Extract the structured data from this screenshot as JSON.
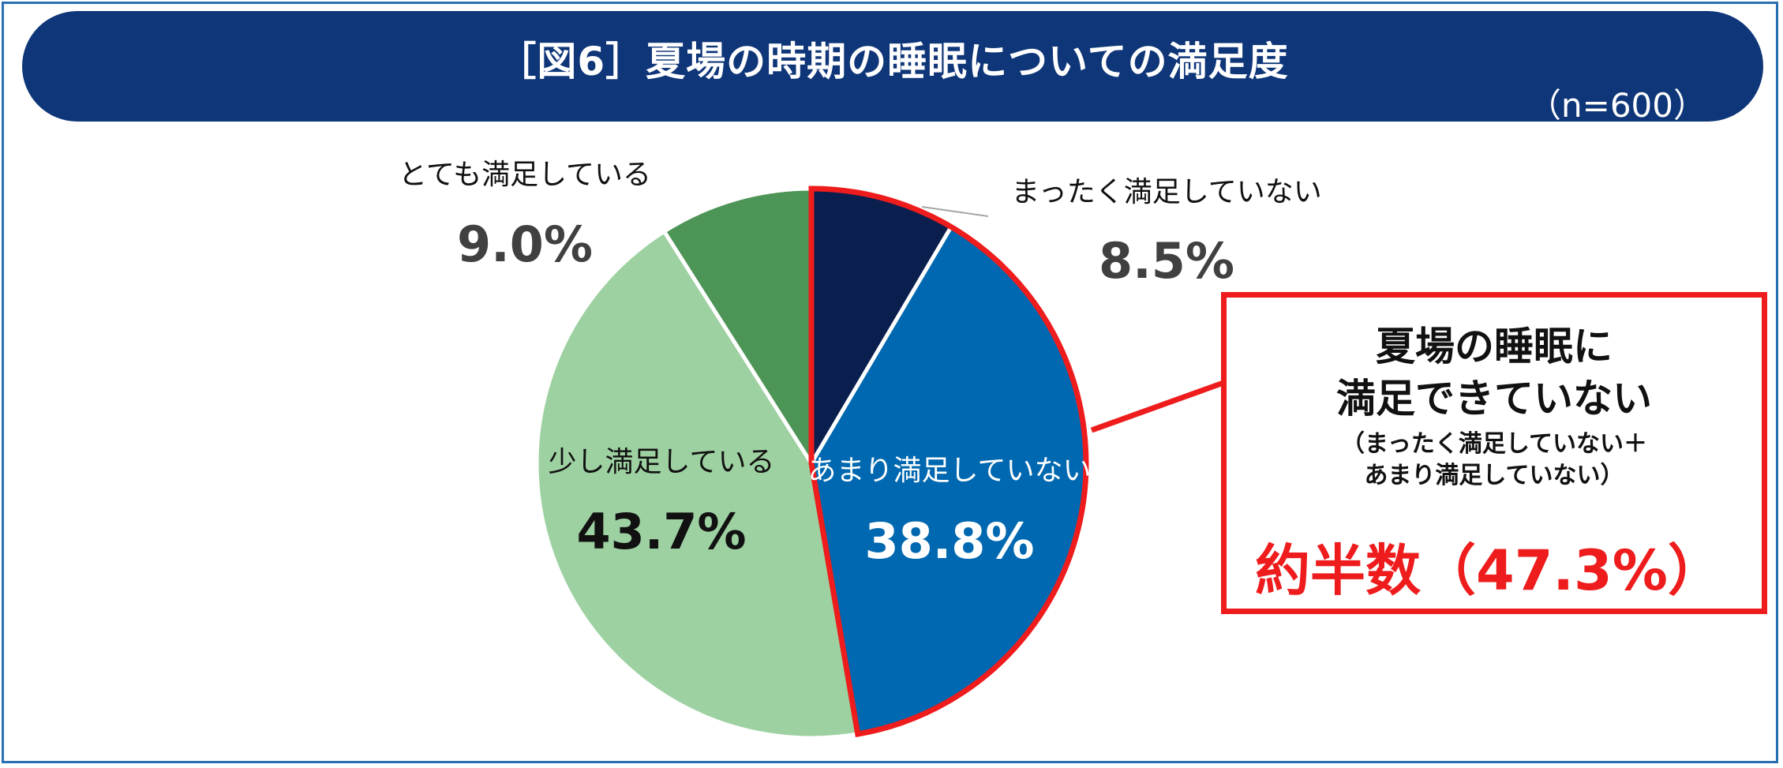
{
  "header": {
    "title": "［図6］夏場の時期の睡眠についての満足度",
    "sample_size": "（n=600）"
  },
  "chart_data": {
    "type": "pie",
    "title": "［図6］夏場の時期の睡眠についての満足度",
    "start": "12 o'clock, clockwise",
    "slices": [
      {
        "label": "まったく満足していない",
        "value": 8.5,
        "value_label": "8.5%",
        "color": "#0b1f4f"
      },
      {
        "label": "あまり満足していない",
        "value": 38.8,
        "value_label": "38.8%",
        "color": "#0068b0"
      },
      {
        "label": "少し満足している",
        "value": 43.7,
        "value_label": "43.7%",
        "color": "#9ed1a1"
      },
      {
        "label": "とても満足している",
        "value": 9.0,
        "value_label": "9.0%",
        "color": "#4d9457"
      }
    ],
    "highlight": {
      "slices": [
        "まったく満足していない",
        "あまり満足していない"
      ],
      "outline_color": "#ee1c1c"
    }
  },
  "callout": {
    "line1": "夏場の睡眠に",
    "line2": "満足できていない",
    "note1": "（まったく満足していない＋",
    "note2": "あまり満足していない）",
    "result": "約半数（47.3%）"
  },
  "colors": {
    "title_bar": "#0f3678",
    "frame": "#2a6fb3",
    "highlight": "#ee1c1c",
    "label_text": "#404040"
  }
}
